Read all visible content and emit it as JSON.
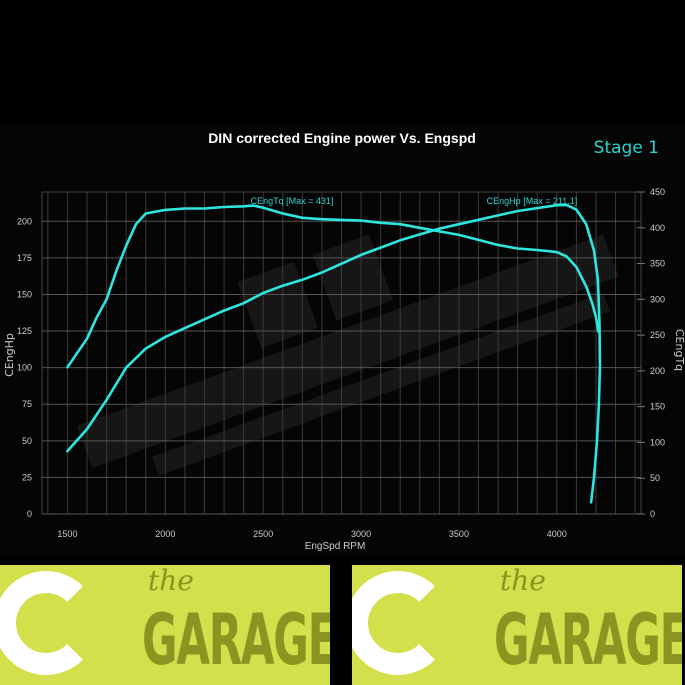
{
  "chart_data": {
    "type": "line",
    "title": "DIN corrected Engine power Vs. Engspd",
    "badge": "Stage 1",
    "xlabel": "EngSpd RPM",
    "ylabel_left": "CEngHp",
    "ylabel_right": "CEngTq",
    "xlim": [
      1370,
      4430
    ],
    "ylim_left": [
      0,
      220
    ],
    "ylim_right": [
      0,
      450
    ],
    "x_ticks": [
      1500,
      2000,
      2500,
      3000,
      3500,
      4000
    ],
    "y_ticks_left": [
      0,
      25,
      50,
      75,
      100,
      125,
      150,
      175,
      200
    ],
    "y_ticks_right": [
      0,
      50,
      100,
      150,
      200,
      250,
      300,
      350,
      400,
      450
    ],
    "grid": true,
    "line_color": "#2ee6e0",
    "series": [
      {
        "name": "CEngHp",
        "label": "CEngHp [Max = 211.1]",
        "axis": "left",
        "x": [
          1500,
          1600,
          1700,
          1800,
          1900,
          2000,
          2100,
          2200,
          2300,
          2400,
          2500,
          2600,
          2700,
          2800,
          2900,
          3000,
          3100,
          3200,
          3300,
          3400,
          3500,
          3600,
          3700,
          3800,
          3900,
          4000,
          4050,
          4100,
          4150,
          4190,
          4210,
          4218,
          4220,
          4215,
          4205,
          4190,
          4175
        ],
        "y": [
          43,
          58,
          78,
          100,
          113,
          121,
          127,
          133,
          139,
          144,
          151,
          156,
          160,
          165,
          171,
          177,
          182,
          187,
          191,
          195,
          198,
          201,
          204,
          207,
          209,
          211,
          211.1,
          208,
          198,
          180,
          160,
          130,
          100,
          75,
          50,
          25,
          8
        ]
      },
      {
        "name": "CEngTq",
        "label": "CEngTq [Max = 431]",
        "axis": "right",
        "x": [
          1500,
          1600,
          1650,
          1700,
          1750,
          1800,
          1850,
          1900,
          2000,
          2100,
          2200,
          2300,
          2400,
          2450,
          2500,
          2600,
          2700,
          2800,
          2900,
          3000,
          3100,
          3200,
          3300,
          3400,
          3500,
          3600,
          3700,
          3800,
          3900,
          4000,
          4050,
          4100,
          4150,
          4180,
          4200,
          4212
        ],
        "y": [
          205,
          245,
          275,
          300,
          340,
          375,
          405,
          420,
          425,
          427,
          427,
          429,
          430,
          431,
          428,
          420,
          414,
          412,
          411,
          410,
          407,
          405,
          400,
          395,
          390,
          383,
          376,
          371,
          369,
          366,
          360,
          345,
          318,
          295,
          275,
          255
        ]
      }
    ]
  },
  "banner": {
    "logos": [
      {
        "small": "the",
        "word": "GARAGE"
      },
      {
        "small": "the",
        "word": "GARAGE"
      }
    ],
    "color": "#d4df4c"
  }
}
